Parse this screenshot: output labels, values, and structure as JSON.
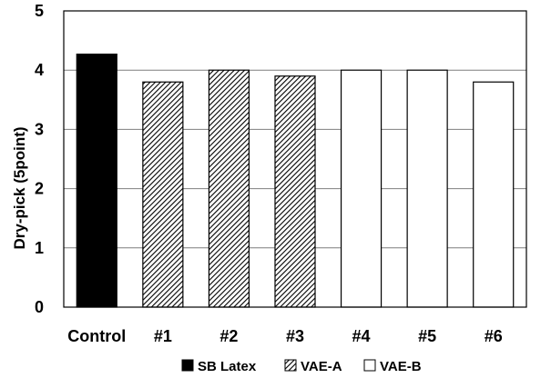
{
  "chart_data": {
    "type": "bar",
    "categories": [
      "Control",
      "#1",
      "#2",
      "#3",
      "#4",
      "#5",
      "#6"
    ],
    "values": [
      4.27,
      3.8,
      4.0,
      3.9,
      4.0,
      4.0,
      3.8
    ],
    "series_of_bar": [
      "SB Latex",
      "VAE-A",
      "VAE-A",
      "VAE-A",
      "VAE-B",
      "VAE-B",
      "VAE-B"
    ],
    "legend": [
      {
        "name": "SB Latex",
        "fill": "#000000"
      },
      {
        "name": "VAE-A",
        "fill": "hatch"
      },
      {
        "name": "VAE-B",
        "fill": "#ffffff"
      }
    ],
    "ylabel": "Dry-pick (5point)",
    "xlabel": "",
    "ylim": [
      0,
      5
    ],
    "yticks": [
      0,
      1,
      2,
      3,
      4,
      5
    ],
    "grid": true,
    "legend_position": "bottom"
  }
}
